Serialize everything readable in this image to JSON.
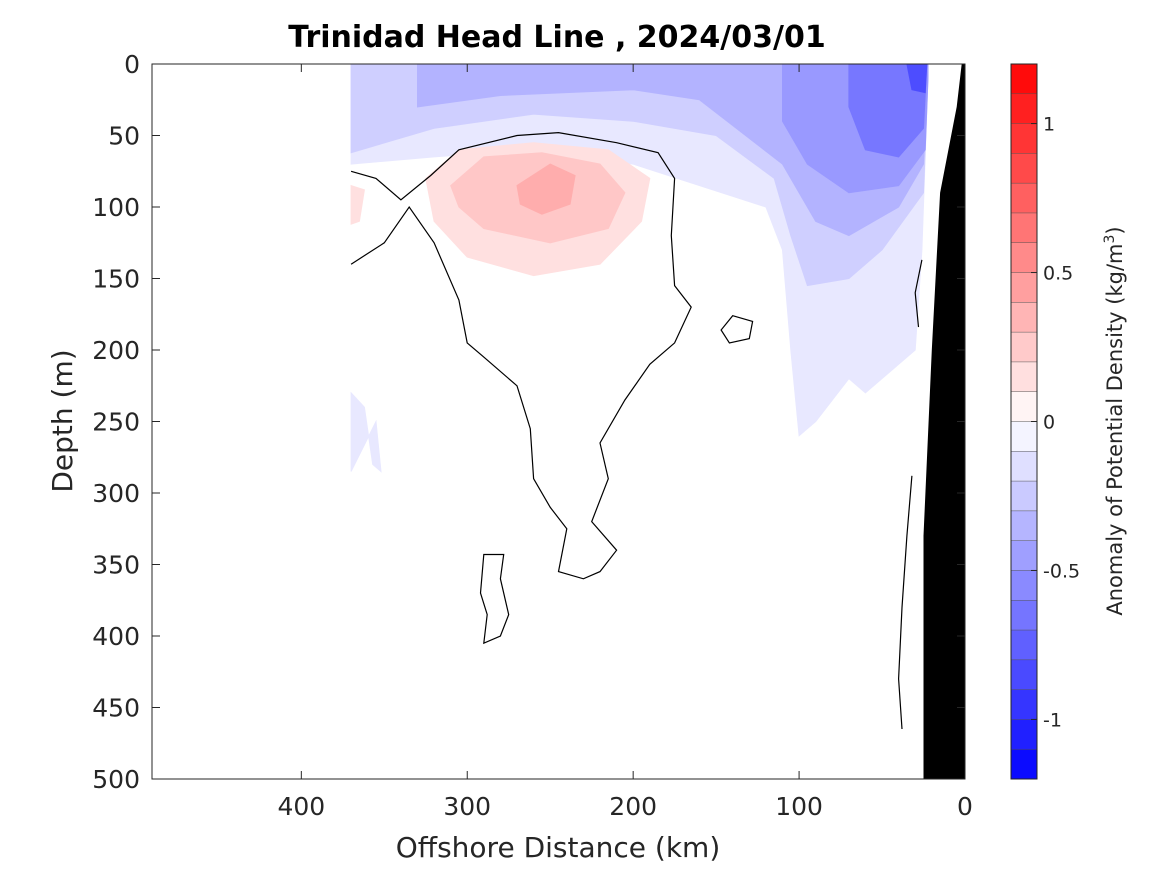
{
  "chart_data": {
    "type": "heatmap",
    "subtype": "filled-contour-section",
    "title": "Trinidad Head Line , 2024/03/01",
    "xlabel": "Offshore Distance (km)",
    "ylabel": "Depth (m)",
    "xlim": [
      490,
      0
    ],
    "ylim": [
      0,
      500
    ],
    "x_reversed": true,
    "y_reversed": true,
    "x_ticks": [
      400,
      300,
      200,
      100,
      0
    ],
    "x_tick_labels": [
      "400",
      "300",
      "200",
      "100",
      "0"
    ],
    "y_ticks": [
      0,
      50,
      100,
      150,
      200,
      250,
      300,
      350,
      400,
      450,
      500
    ],
    "y_tick_labels": [
      "0",
      "50",
      "100",
      "150",
      "200",
      "250",
      "300",
      "350",
      "400",
      "450",
      "500"
    ],
    "colorbar": {
      "label_main": "Anomaly of Potential Density (kg/m",
      "label_sup": "3",
      "label_close": ")",
      "range": [
        -1.2,
        1.2
      ],
      "levels": 24,
      "ticks": [
        1,
        0.5,
        0,
        -0.5,
        -1
      ],
      "tick_labels": [
        "1",
        "0.5",
        "0",
        "-0.5",
        "-1"
      ]
    },
    "grid": false,
    "regions": [
      {
        "name": "negative anomaly -0.1 to 0",
        "level": -0.05,
        "color": "#e8e8ff",
        "points": [
          [
            370,
            0
          ],
          [
            22,
            0
          ],
          [
            26,
            130
          ],
          [
            30,
            200
          ],
          [
            60,
            230
          ],
          [
            70,
            220
          ],
          [
            90,
            250
          ],
          [
            100,
            260
          ],
          [
            105,
            200
          ],
          [
            110,
            130
          ],
          [
            120,
            100
          ],
          [
            200,
            70
          ],
          [
            260,
            60
          ],
          [
            320,
            65
          ],
          [
            370,
            70
          ]
        ]
      },
      {
        "name": "negative anomaly -0.2",
        "level": -0.15,
        "color": "#cfcfff",
        "points": [
          [
            370,
            0
          ],
          [
            22,
            0
          ],
          [
            25,
            90
          ],
          [
            50,
            130
          ],
          [
            70,
            150
          ],
          [
            95,
            155
          ],
          [
            105,
            120
          ],
          [
            115,
            80
          ],
          [
            150,
            50
          ],
          [
            200,
            40
          ],
          [
            260,
            35
          ],
          [
            320,
            45
          ],
          [
            370,
            62
          ]
        ]
      },
      {
        "name": "negative anomaly -0.3",
        "level": -0.25,
        "color": "#b3b3ff",
        "points": [
          [
            330,
            0
          ],
          [
            22,
            0
          ],
          [
            25,
            70
          ],
          [
            40,
            100
          ],
          [
            70,
            120
          ],
          [
            90,
            110
          ],
          [
            110,
            70
          ],
          [
            160,
            25
          ],
          [
            200,
            18
          ],
          [
            280,
            22
          ],
          [
            330,
            30
          ]
        ]
      },
      {
        "name": "negative anomaly -0.45",
        "level": -0.45,
        "color": "#9999ff",
        "points": [
          [
            110,
            0
          ],
          [
            22,
            0
          ],
          [
            24,
            60
          ],
          [
            40,
            85
          ],
          [
            70,
            90
          ],
          [
            95,
            70
          ],
          [
            110,
            40
          ]
        ]
      },
      {
        "name": "negative anomaly -0.6",
        "level": -0.6,
        "color": "#7777ff",
        "points": [
          [
            70,
            0
          ],
          [
            23,
            0
          ],
          [
            25,
            45
          ],
          [
            40,
            65
          ],
          [
            60,
            60
          ],
          [
            70,
            30
          ]
        ]
      },
      {
        "name": "negative anomaly -0.9",
        "level": -0.9,
        "color": "#4d4dff",
        "points": [
          [
            35,
            0
          ],
          [
            23,
            0
          ],
          [
            24,
            20
          ],
          [
            32,
            18
          ]
        ]
      },
      {
        "name": "positive anomaly 0.1",
        "level": 0.1,
        "color": "#ffe0e0",
        "points": [
          [
            325,
            80
          ],
          [
            305,
            60
          ],
          [
            260,
            55
          ],
          [
            215,
            60
          ],
          [
            190,
            80
          ],
          [
            195,
            110
          ],
          [
            220,
            140
          ],
          [
            260,
            148
          ],
          [
            300,
            135
          ],
          [
            320,
            110
          ]
        ]
      },
      {
        "name": "positive anomaly 0.2",
        "level": 0.2,
        "color": "#ffc7c7",
        "points": [
          [
            310,
            85
          ],
          [
            290,
            65
          ],
          [
            255,
            62
          ],
          [
            220,
            70
          ],
          [
            205,
            90
          ],
          [
            215,
            115
          ],
          [
            250,
            125
          ],
          [
            290,
            115
          ],
          [
            305,
            100
          ]
        ]
      },
      {
        "name": "positive anomaly 0.3",
        "level": 0.3,
        "color": "#ffadad",
        "points": [
          [
            270,
            85
          ],
          [
            250,
            70
          ],
          [
            235,
            78
          ],
          [
            238,
            98
          ],
          [
            255,
            105
          ],
          [
            268,
            98
          ]
        ]
      },
      {
        "name": "positive anomaly west edge",
        "level": 0.1,
        "color": "#ffe0e0",
        "points": [
          [
            370,
            85
          ],
          [
            362,
            88
          ],
          [
            365,
            110
          ],
          [
            370,
            112
          ]
        ]
      },
      {
        "name": "negative anomaly deep west",
        "level": -0.05,
        "color": "#e8e8ff",
        "points": [
          [
            370,
            230
          ],
          [
            362,
            240
          ],
          [
            357,
            280
          ],
          [
            352,
            285
          ],
          [
            355,
            250
          ],
          [
            370,
            285
          ]
        ]
      }
    ],
    "contour_lines": [
      {
        "name": "zero contour main",
        "points": [
          [
            370,
            75
          ],
          [
            355,
            80
          ],
          [
            340,
            95
          ],
          [
            322,
            78
          ],
          [
            305,
            60
          ],
          [
            270,
            50
          ],
          [
            245,
            48
          ],
          [
            210,
            55
          ],
          [
            185,
            62
          ],
          [
            175,
            80
          ],
          [
            177,
            120
          ],
          [
            175,
            155
          ],
          [
            165,
            170
          ],
          [
            175,
            195
          ],
          [
            190,
            210
          ],
          [
            205,
            235
          ],
          [
            220,
            265
          ],
          [
            215,
            290
          ],
          [
            225,
            320
          ],
          [
            210,
            340
          ],
          [
            220,
            355
          ],
          [
            230,
            360
          ],
          [
            245,
            355
          ],
          [
            240,
            325
          ],
          [
            250,
            310
          ],
          [
            260,
            290
          ],
          [
            262,
            255
          ],
          [
            270,
            225
          ],
          [
            290,
            205
          ],
          [
            300,
            195
          ],
          [
            305,
            165
          ],
          [
            320,
            125
          ],
          [
            335,
            100
          ],
          [
            350,
            125
          ],
          [
            370,
            140
          ]
        ]
      },
      {
        "name": "zero contour small loop",
        "points": [
          [
            140,
            176
          ],
          [
            128,
            180
          ],
          [
            130,
            192
          ],
          [
            142,
            195
          ],
          [
            147,
            186
          ]
        ]
      },
      {
        "name": "zero contour deep loop",
        "points": [
          [
            290,
            343
          ],
          [
            278,
            343
          ],
          [
            280,
            360
          ],
          [
            275,
            385
          ],
          [
            280,
            400
          ],
          [
            290,
            405
          ],
          [
            288,
            385
          ],
          [
            292,
            370
          ]
        ]
      },
      {
        "name": "zero contour near-shore upper",
        "points": [
          [
            26,
            137
          ],
          [
            30,
            160
          ],
          [
            28,
            184
          ]
        ]
      },
      {
        "name": "zero contour near-shore lower",
        "points": [
          [
            32,
            288
          ],
          [
            35,
            330
          ],
          [
            38,
            380
          ],
          [
            40,
            430
          ],
          [
            38,
            465
          ]
        ]
      }
    ],
    "land_mask": [
      [
        22,
        0
      ],
      [
        22,
        500
      ],
      [
        0,
        500
      ],
      [
        0,
        0
      ]
    ],
    "bathymetry": [
      [
        0,
        0
      ],
      [
        2,
        0
      ],
      [
        5,
        30
      ],
      [
        15,
        90
      ],
      [
        20,
        200
      ],
      [
        25,
        330
      ],
      [
        25,
        500
      ],
      [
        0,
        500
      ]
    ]
  }
}
